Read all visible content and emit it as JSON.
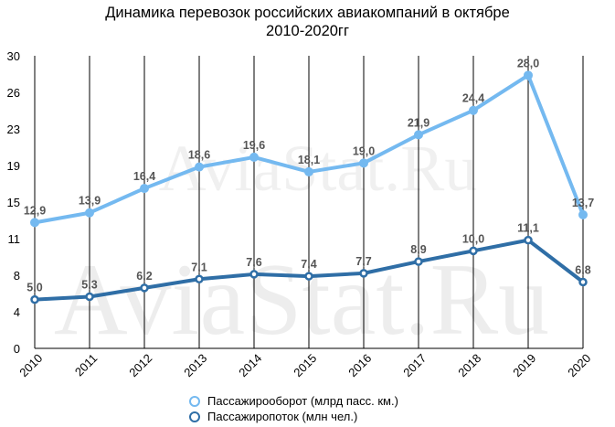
{
  "title_line1": "Динамика перевозок российских авиакомпаний в октябре",
  "title_line2": "2010-2020гг",
  "watermark_text": "AviaStat.Ru",
  "colors": {
    "series_light": "#74b9f0",
    "series_dark": "#2f6ea6",
    "grid": "#000000",
    "label": "#555555"
  },
  "chart_data": {
    "type": "line",
    "title": "Динамика перевозок российских авиакомпаний в октябре 2010-2020гг",
    "categories": [
      "2010",
      "2011",
      "2012",
      "2013",
      "2014",
      "2015",
      "2016",
      "2017",
      "2018",
      "2019",
      "2020"
    ],
    "ylim": [
      0,
      30
    ],
    "yticks": [
      "0",
      "4",
      "8",
      "11",
      "15",
      "19",
      "23",
      "26",
      "30"
    ],
    "grid": "vertical",
    "legend_position": "bottom",
    "series": [
      {
        "name": "Пассажирооборот (млрд пасс. км.)",
        "values": [
          12.9,
          13.9,
          16.4,
          18.6,
          19.6,
          18.1,
          19.0,
          21.9,
          24.4,
          28.0,
          13.7
        ],
        "labels": [
          "12,9",
          "13,9",
          "16,4",
          "18,6",
          "19,6",
          "18,1",
          "19,0",
          "21,9",
          "24,4",
          "28,0",
          "13,7"
        ],
        "color": "#74b9f0"
      },
      {
        "name": "Пассажиропоток (млн чел.)",
        "values": [
          5.0,
          5.3,
          6.2,
          7.1,
          7.6,
          7.4,
          7.7,
          8.9,
          10.0,
          11.1,
          6.8
        ],
        "labels": [
          "5,0",
          "5,3",
          "6,2",
          "7,1",
          "7,6",
          "7,4",
          "7,7",
          "8,9",
          "10,0",
          "11,1",
          "6,8"
        ],
        "color": "#2f6ea6"
      }
    ]
  }
}
